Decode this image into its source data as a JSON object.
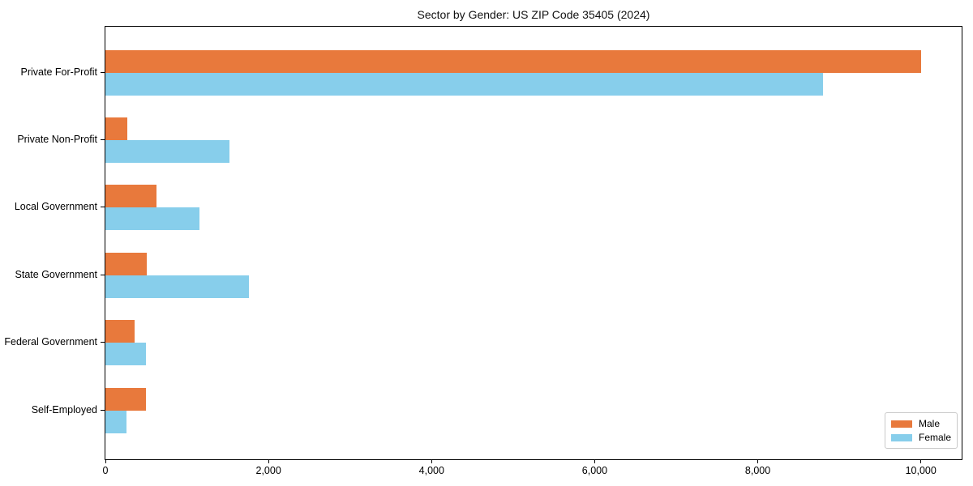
{
  "chart_data": {
    "type": "bar",
    "orientation": "horizontal",
    "title": "Sector by Gender: US ZIP Code 35405 (2024)",
    "categories": [
      "Private For-Profit",
      "Private Non-Profit",
      "Local Government",
      "State Government",
      "Federal Government",
      "Self-Employed"
    ],
    "series": [
      {
        "name": "Male",
        "color": "#e8793c",
        "values": [
          10000,
          270,
          630,
          510,
          360,
          500
        ]
      },
      {
        "name": "Female",
        "color": "#87ceeb",
        "values": [
          8800,
          1520,
          1150,
          1760,
          500,
          260
        ]
      }
    ],
    "xlabel": "",
    "ylabel": "",
    "xlim": [
      0,
      10500
    ],
    "xticks": [
      0,
      2000,
      4000,
      6000,
      8000,
      10000
    ],
    "xtick_labels": [
      "0",
      "2,000",
      "4,000",
      "6,000",
      "8,000",
      "10,000"
    ],
    "grid": false,
    "legend_position": "lower right",
    "colors": {
      "male": "#e8793c",
      "female": "#87ceeb",
      "spine": "#000000",
      "legend_border": "#c9c9c9",
      "background": "#ffffff",
      "text": "#111111"
    }
  }
}
